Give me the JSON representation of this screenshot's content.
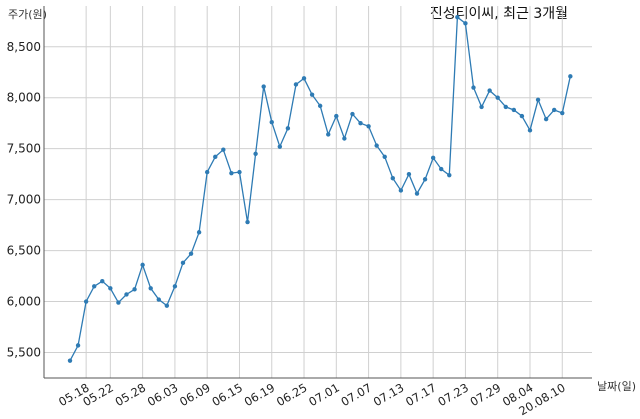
{
  "chart_data": {
    "type": "line",
    "title": "진성티이씨, 최근 3개월",
    "ylabel": "주가(원)",
    "xlabel": "날짜(일)",
    "ylim": [
      5250,
      8900
    ],
    "yticks": [
      5500,
      6000,
      6500,
      7000,
      7500,
      8000,
      8500
    ],
    "ytick_labels": [
      "5,500",
      "6,000",
      "6,500",
      "7,000",
      "7,500",
      "8,000",
      "8,500"
    ],
    "grid": true,
    "x_tick_labels": [
      "05.18",
      "05.22",
      "05.28",
      "06.03",
      "06.09",
      "06.15",
      "06.19",
      "06.25",
      "07.01",
      "07.07",
      "07.13",
      "07.17",
      "07.23",
      "07.29",
      "08.04",
      "20.08.10"
    ],
    "x_tick_indices": [
      2,
      5,
      9,
      13,
      17,
      21,
      25,
      29,
      33,
      37,
      41,
      45,
      49,
      53,
      57,
      61
    ],
    "series": [
      {
        "color": "#2e7bb4",
        "values": [
          5420,
          5570,
          6000,
          6150,
          6200,
          6130,
          5990,
          6070,
          6120,
          6360,
          6130,
          6020,
          5960,
          6150,
          6380,
          6470,
          6680,
          7270,
          7420,
          7490,
          7260,
          7270,
          6780,
          7450,
          8110,
          7760,
          7520,
          7700,
          8130,
          8190,
          8030,
          7920,
          7640,
          7820,
          7600,
          7840,
          7750,
          7720,
          7530,
          7420,
          7210,
          7090,
          7250,
          7060,
          7200,
          7410,
          7300,
          7240,
          8790,
          8730,
          8100,
          7910,
          8070,
          8000,
          7910,
          7880,
          7820,
          7680,
          7980,
          7790,
          7880,
          7850,
          8210
        ]
      }
    ]
  }
}
